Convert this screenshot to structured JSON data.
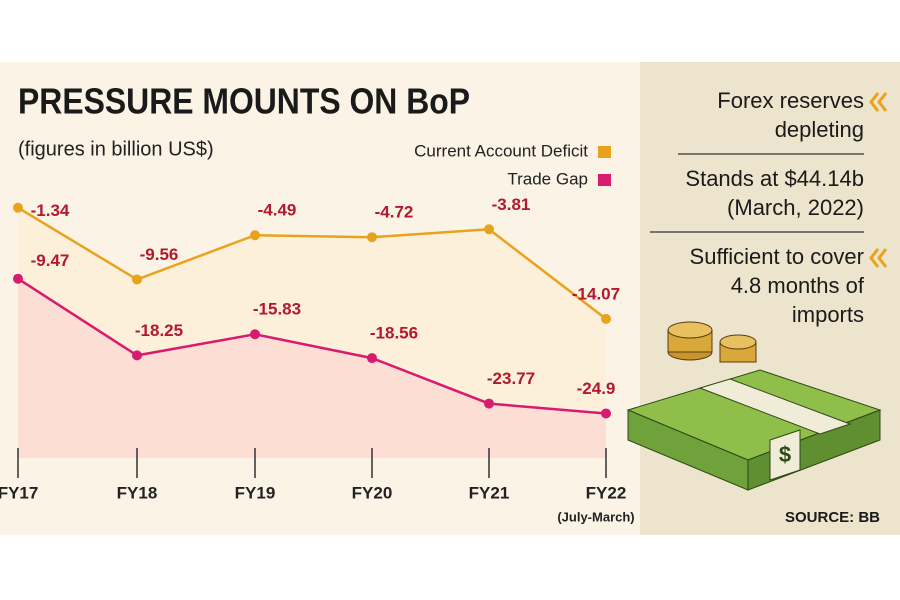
{
  "chart_data": {
    "type": "line",
    "title": "PRESSURE MOUNTS ON BoP",
    "subtitle": "(figures in billion US$)",
    "categories": [
      "FY17",
      "FY18",
      "FY19",
      "FY20",
      "FY21",
      "FY22"
    ],
    "category_note": "(July-March)",
    "ylim": [
      -30,
      0
    ],
    "series": [
      {
        "name": "Current Account Deficit",
        "color": "#e9a21c",
        "values": [
          -1.34,
          -9.56,
          -4.49,
          -4.72,
          -3.81,
          -14.07
        ]
      },
      {
        "name": "Trade Gap",
        "color": "#d81b6e",
        "values": [
          -9.47,
          -18.25,
          -15.83,
          -18.56,
          -23.77,
          -24.9
        ]
      }
    ]
  },
  "sidebar": {
    "notes": [
      [
        "Forex reserves",
        "depleting"
      ],
      [
        "Stands at $44.14b",
        "(March, 2022)"
      ],
      [
        "Sufficient to cover",
        "4.8 months of",
        "imports"
      ]
    ],
    "source": "SOURCE: BB"
  }
}
